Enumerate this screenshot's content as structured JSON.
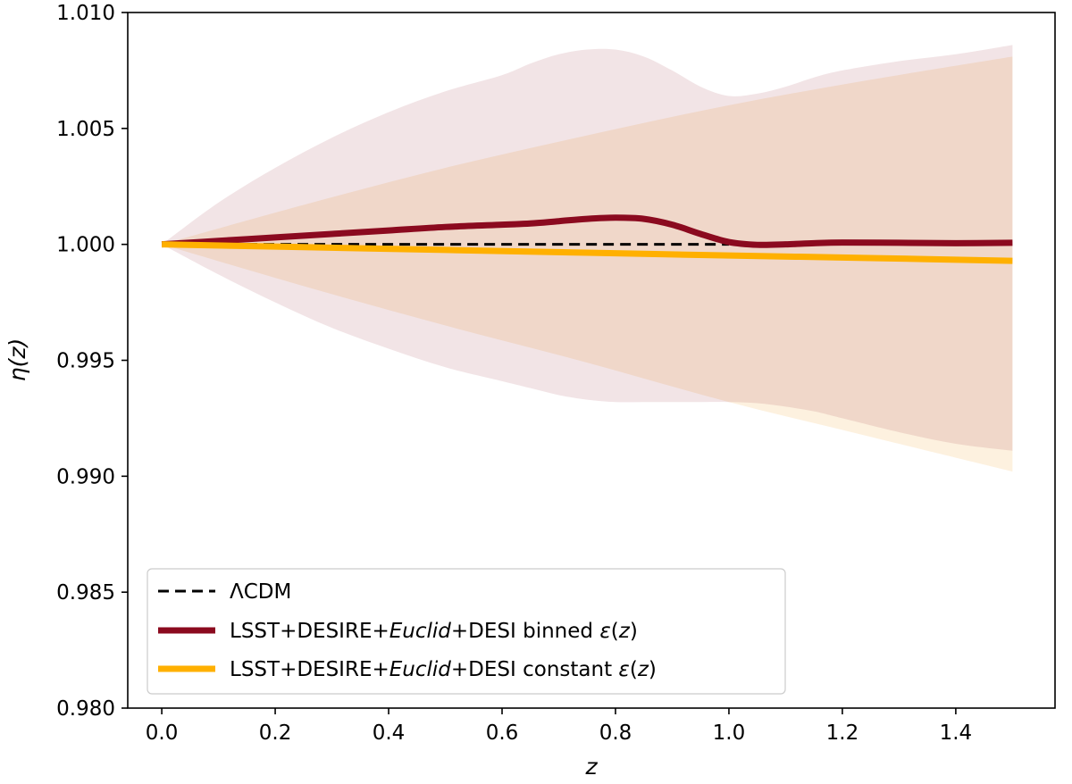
{
  "chart_data": {
    "type": "line",
    "title": "",
    "xlabel": "z",
    "ylabel": "η(z)",
    "xlim": [
      -0.06,
      1.575
    ],
    "ylim": [
      0.98,
      1.01
    ],
    "xticks": [
      0.0,
      0.2,
      0.4,
      0.6,
      0.8,
      1.0,
      1.2,
      1.4
    ],
    "xtick_labels": [
      "0.0",
      "0.2",
      "0.4",
      "0.6",
      "0.8",
      "1.0",
      "1.2",
      "1.4"
    ],
    "yticks": [
      0.98,
      0.985,
      0.99,
      0.995,
      1.0,
      1.005,
      1.01
    ],
    "ytick_labels": [
      "0.980",
      "0.985",
      "0.990",
      "0.995",
      "1.000",
      "1.005",
      "1.010"
    ],
    "grid": false,
    "legend_position": "lower-left",
    "series": [
      {
        "name": "ΛCDM",
        "label_parts": [
          "ΛCDM"
        ],
        "color": "#000000",
        "style": "dashed",
        "x": [
          0.0,
          1.0
        ],
        "y": [
          1.0,
          1.0
        ]
      },
      {
        "name": "LSST+DESIRE+Euclid+DESI binned ε(z)",
        "label_parts": [
          "LSST+DESIRE+",
          "Euclid",
          "+DESI binned ",
          "ε",
          "(",
          "z",
          ")"
        ],
        "color": "#8b0a1f",
        "style": "solid",
        "x": [
          0.0,
          0.1,
          0.2,
          0.3,
          0.4,
          0.5,
          0.6,
          0.65,
          0.7,
          0.75,
          0.8,
          0.85,
          0.9,
          0.95,
          1.0,
          1.05,
          1.1,
          1.15,
          1.2,
          1.3,
          1.4,
          1.5
        ],
        "y": [
          1.0,
          1.00015,
          1.0003,
          1.00045,
          1.0006,
          1.00075,
          1.00085,
          1.0009,
          1.001,
          1.0011,
          1.00115,
          1.0011,
          1.00085,
          1.00045,
          1.0001,
          0.99998,
          1.0,
          1.00005,
          1.00008,
          1.00007,
          1.00005,
          1.00007
        ],
        "band_upper": [
          1.0,
          1.0018,
          1.0033,
          1.0046,
          1.0057,
          1.0066,
          1.0073,
          1.0078,
          1.0082,
          1.0084,
          1.0084,
          1.0081,
          1.0075,
          1.0068,
          1.0064,
          1.0065,
          1.0068,
          1.0072,
          1.0075,
          1.0079,
          1.0082,
          1.0086
        ],
        "band_lower": [
          1.0,
          0.9987,
          0.9975,
          0.9964,
          0.9955,
          0.9947,
          0.9941,
          0.9938,
          0.9935,
          0.9933,
          0.9932,
          0.9932,
          0.9932,
          0.9932,
          0.9932,
          0.99315,
          0.993,
          0.9928,
          0.9925,
          0.9919,
          0.9914,
          0.9911
        ],
        "band_color": "#f2e4e6"
      },
      {
        "name": "LSST+DESIRE+Euclid+DESI constant ε(z)",
        "label_parts": [
          "LSST+DESIRE+",
          "Euclid",
          "+DESI constant ",
          "ε",
          "(",
          "z",
          ")"
        ],
        "color": "#ffb000",
        "style": "solid",
        "x": [
          0.0,
          0.25,
          0.5,
          0.75,
          1.0,
          1.25,
          1.5
        ],
        "y": [
          1.0,
          0.99988,
          0.99976,
          0.99964,
          0.99952,
          0.99941,
          0.99929
        ],
        "band_upper": [
          1.0,
          1.0017,
          1.0033,
          1.0047,
          1.006,
          1.0071,
          1.0081
        ],
        "band_lower": [
          1.0,
          0.9982,
          0.9965,
          0.9949,
          0.9932,
          0.9917,
          0.9902
        ],
        "band_color": "#fdf1df"
      }
    ]
  }
}
